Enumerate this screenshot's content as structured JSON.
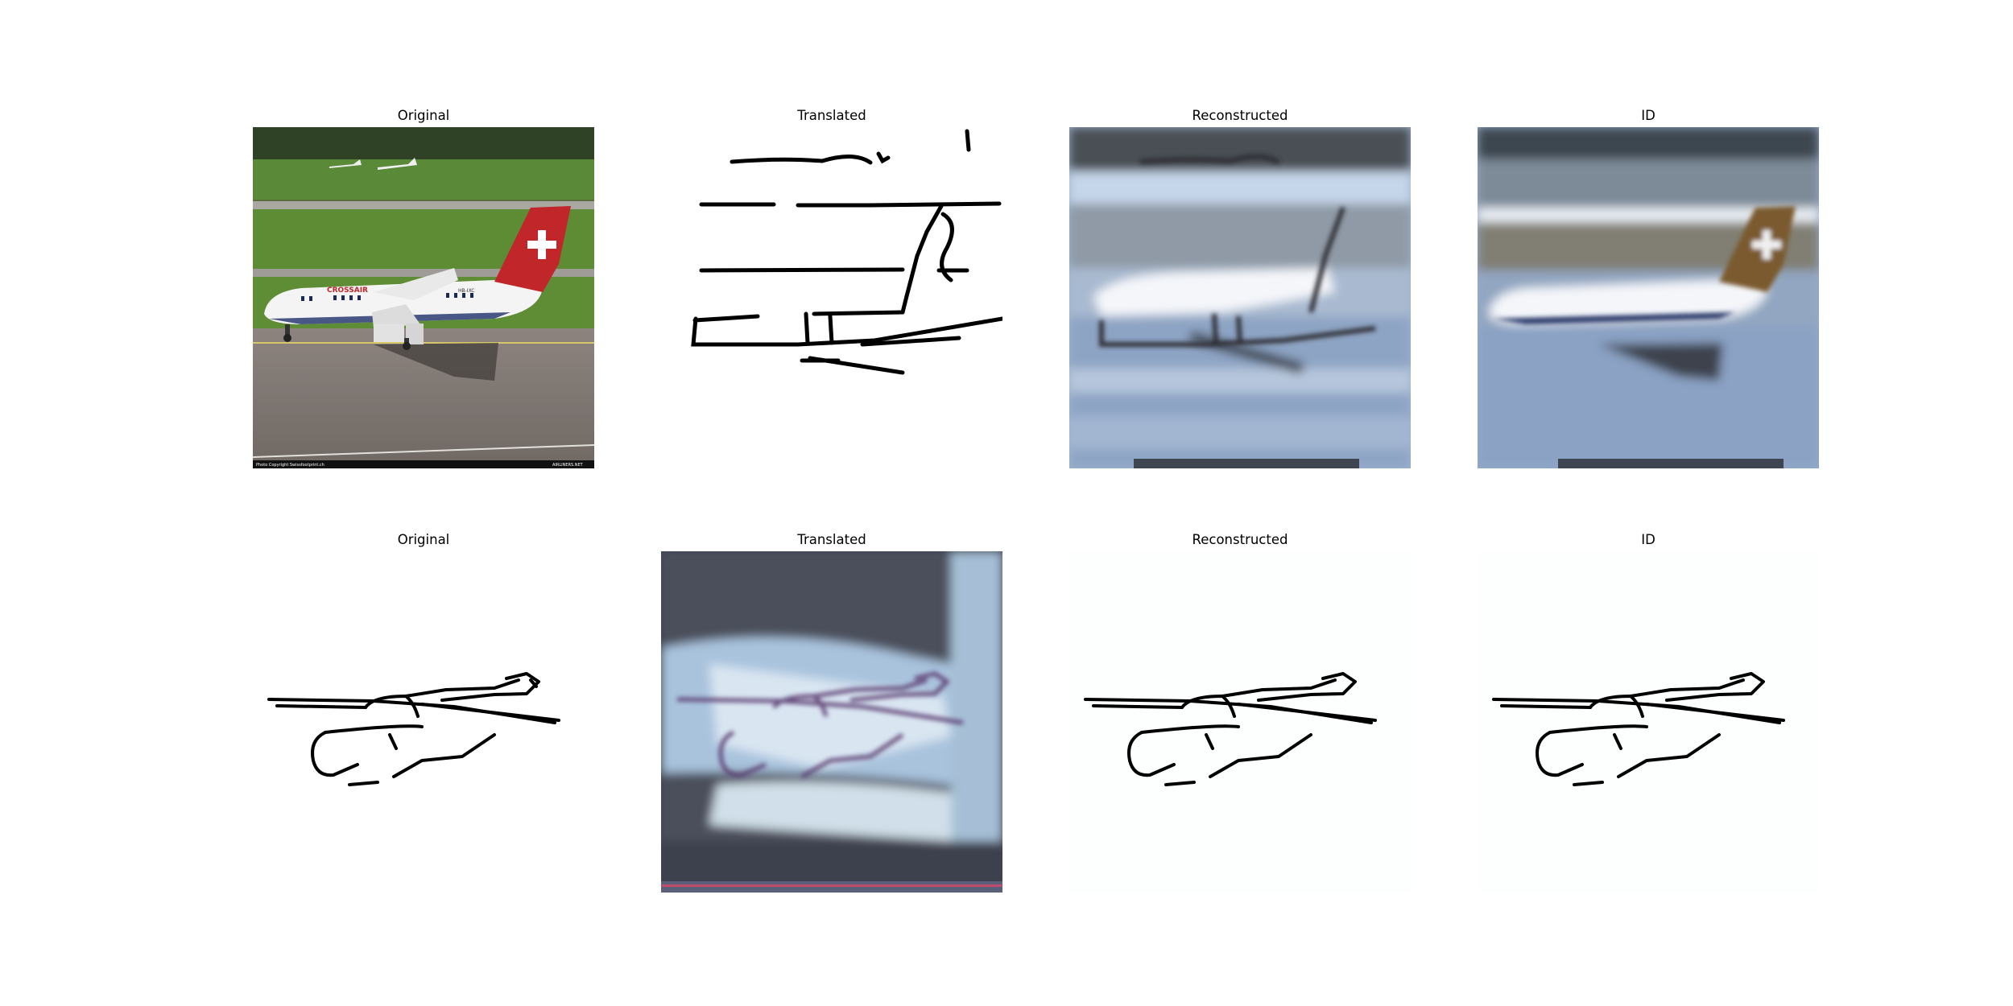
{
  "rows": [
    {
      "panels": [
        {
          "title": "Original",
          "image": "photo of white Crossair jet with red tail and swiss cross on runway"
        },
        {
          "title": "Translated",
          "image": "black line sketch on white"
        },
        {
          "title": "Reconstructed",
          "image": "blurry bluish reconstruction of airplane photo"
        },
        {
          "title": "ID",
          "image": "blurry bluish identity of airplane photo"
        }
      ]
    },
    {
      "panels": [
        {
          "title": "Original",
          "image": "black line sketch of airplane on white"
        },
        {
          "title": "Translated",
          "image": "bluish blurry translated sketch"
        },
        {
          "title": "Reconstructed",
          "image": "black line sketch of airplane on white"
        },
        {
          "title": "ID",
          "image": "black line sketch of airplane on white"
        }
      ]
    }
  ],
  "photo_text": {
    "airline": "CROSSAIR",
    "registration": "HB-IXC",
    "copyright": "Photo Copyright Swissfootprint.ch",
    "site": "AIRLINERS.NET"
  },
  "colors": {
    "tail_red": "#c0262a",
    "sketch_line": "#000000",
    "recon_blue": "#9fb3cf"
  }
}
